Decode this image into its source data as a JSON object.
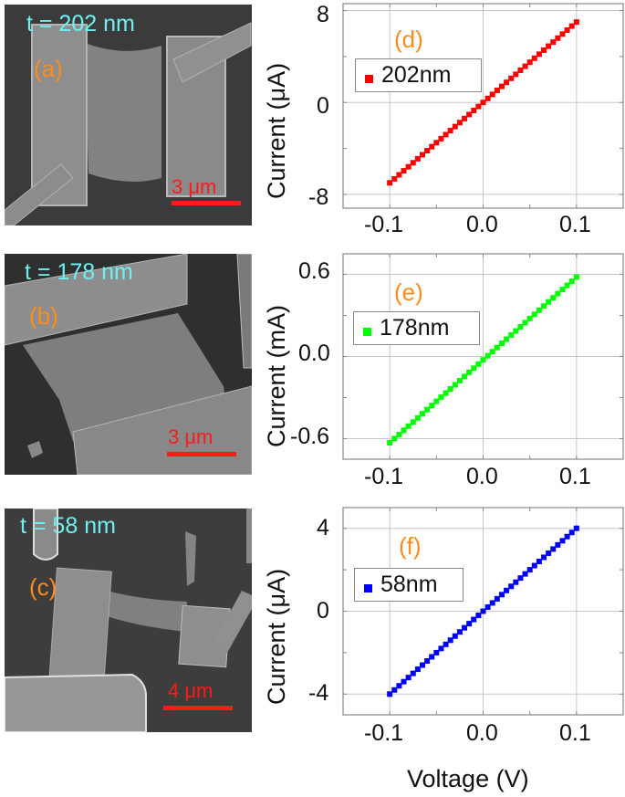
{
  "sem_images": [
    {
      "id": "a",
      "panel_label": "(a)",
      "thickness_label": "t = 202 nm",
      "scale_label": "3 μm"
    },
    {
      "id": "b",
      "panel_label": "(b)",
      "thickness_label": "t = 178 nm",
      "scale_label": "3 μm"
    },
    {
      "id": "c",
      "panel_label": "(c)",
      "thickness_label": "t = 58 nm",
      "scale_label": "4 μm"
    }
  ],
  "colors": {
    "panel_label": "#ff8c1a",
    "thickness_label": "#6ff0f0",
    "scale_bar": "#ff1a1a",
    "grid": "#c8c8c8",
    "frame": "#888888"
  },
  "chart_data": [
    {
      "id": "d",
      "type": "scatter",
      "panel_label": "(d)",
      "xlabel": "",
      "ylabel": "Current (μA)",
      "xlim": [
        -0.15,
        0.15
      ],
      "ylim": [
        -9.2,
        8.6
      ],
      "xticks": [
        -0.1,
        0.0,
        0.1
      ],
      "xtick_labels": [
        "-0.1",
        "0.0",
        "0.1"
      ],
      "yticks": [
        -8,
        0,
        8
      ],
      "ytick_labels": [
        "-8",
        "0",
        "8"
      ],
      "grid": true,
      "legend": [
        {
          "label": "202nm",
          "color": "#ff0000"
        }
      ],
      "series": [
        {
          "name": "202nm",
          "color": "#ff0000",
          "x_start": -0.1,
          "x_end": 0.1,
          "n_points": 41,
          "y_start": -7.0,
          "y_end": 7.0
        }
      ]
    },
    {
      "id": "e",
      "type": "scatter",
      "panel_label": "(e)",
      "xlabel": "",
      "ylabel": "Current (mA)",
      "xlim": [
        -0.15,
        0.15
      ],
      "ylim": [
        -0.75,
        0.75
      ],
      "xticks": [
        -0.1,
        0.0,
        0.1
      ],
      "xtick_labels": [
        "-0.1",
        "0.0",
        "0.1"
      ],
      "yticks": [
        -0.6,
        0.0,
        0.6
      ],
      "ytick_labels": [
        "-0.6",
        "0.0",
        "0.6"
      ],
      "grid": true,
      "legend": [
        {
          "label": "178nm",
          "color": "#00ff00"
        }
      ],
      "series": [
        {
          "name": "178nm",
          "color": "#00ff00",
          "x_start": -0.1,
          "x_end": 0.1,
          "n_points": 41,
          "y_start": -0.63,
          "y_end": 0.58
        }
      ]
    },
    {
      "id": "f",
      "type": "scatter",
      "panel_label": "(f)",
      "xlabel": "Voltage (V)",
      "ylabel": "Current (μA)",
      "xlim": [
        -0.15,
        0.15
      ],
      "ylim": [
        -5,
        5
      ],
      "xticks": [
        -0.1,
        0.0,
        0.1
      ],
      "xtick_labels": [
        "-0.1",
        "0.0",
        "0.1"
      ],
      "yticks": [
        -4,
        0,
        4
      ],
      "ytick_labels": [
        "-4",
        "0",
        "4"
      ],
      "grid": true,
      "legend": [
        {
          "label": "58nm",
          "color": "#0000ff"
        }
      ],
      "series": [
        {
          "name": "58nm",
          "color": "#0000ff",
          "x_start": -0.1,
          "x_end": 0.1,
          "n_points": 41,
          "y_start": -4.0,
          "y_end": 4.0
        }
      ]
    }
  ]
}
